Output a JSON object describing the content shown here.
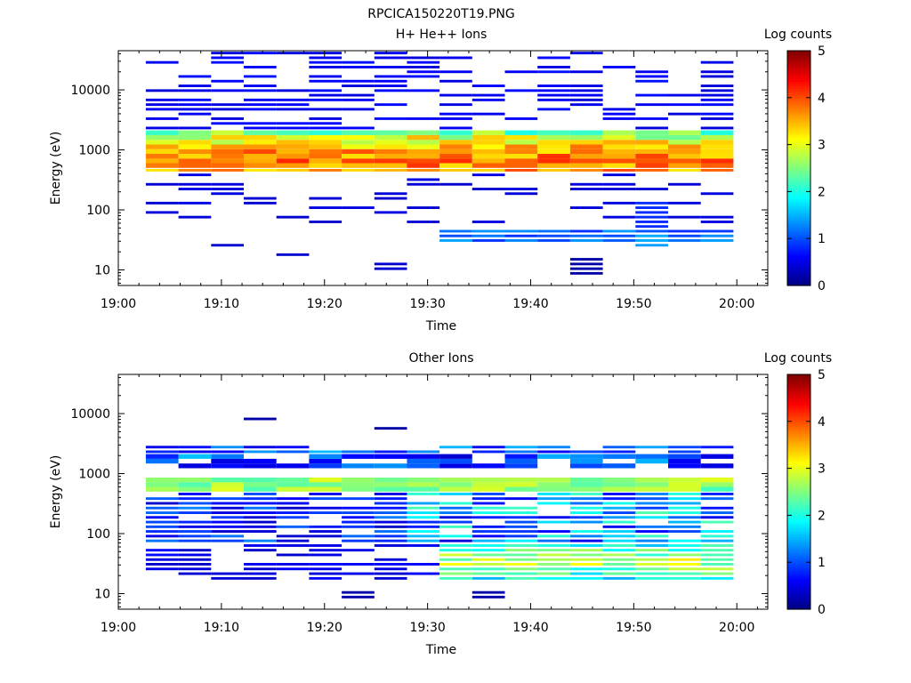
{
  "figure_title": "RPCICA150220T19.PNG",
  "chart_data": [
    {
      "type": "heatmap",
      "title": "H+ He++ Ions",
      "xlabel": "Time",
      "ylabel": "Energy (eV)",
      "y_scale": "log",
      "ylim": [
        5.5,
        45000
      ],
      "xlim_minutes": [
        0,
        63
      ],
      "x_ticks": [
        "19:00",
        "19:10",
        "19:20",
        "19:30",
        "19:40",
        "19:50",
        "20:00"
      ],
      "y_ticks": [
        "10",
        "100",
        "1000",
        "10000"
      ],
      "colorbar": {
        "label": "Log counts",
        "range": [
          0,
          5
        ],
        "ticks": [
          "0",
          "1",
          "2",
          "3",
          "4",
          "5"
        ]
      },
      "time_bins_start": [
        "19:02:40",
        "19:05:50",
        "19:09:00",
        "19:12:10",
        "19:15:20",
        "19:18:30",
        "19:21:40",
        "19:24:50",
        "19:28:00",
        "19:31:10",
        "19:34:20",
        "19:37:30",
        "19:40:40",
        "19:43:50",
        "19:47:00",
        "19:50:10",
        "19:53:20",
        "19:56:30"
      ],
      "description_of_values": "log10 counts per energy-time cell",
      "core_band": {
        "energy_range_eV": [
          400,
          2200
        ],
        "peak_log_counts": 4.2,
        "peak_energy_eV": 650
      },
      "secondary_band": {
        "energy_range_eV": [
          1300,
          1700
        ],
        "peak_log_counts": 3.5
      },
      "low_energy_patches": [
        {
          "time": "19:45:00",
          "energy_range_eV": [
            7,
            16
          ],
          "log_counts": 0.2
        },
        {
          "time": "19:26:00",
          "energy_range_eV": [
            10,
            15
          ],
          "log_counts": 0.4
        },
        {
          "time": "19:16:00",
          "energy_range_eV": [
            17,
            21
          ],
          "log_counts": 0.4
        },
        {
          "time": "19:10:00",
          "energy_range_eV": [
            22,
            27
          ],
          "log_counts": 0.4
        },
        {
          "time": "19:51:30",
          "energy_range_eV": [
            25,
            150
          ],
          "log_counts": 1.4
        }
      ]
    },
    {
      "type": "heatmap",
      "title": "Other Ions",
      "xlabel": "Time",
      "ylabel": "Energy (eV)",
      "y_scale": "log",
      "ylim": [
        5.5,
        45000
      ],
      "xlim_minutes": [
        0,
        63
      ],
      "x_ticks": [
        "19:00",
        "19:10",
        "19:20",
        "19:30",
        "19:40",
        "19:50",
        "20:00"
      ],
      "y_ticks": [
        "10",
        "100",
        "1000",
        "10000"
      ],
      "colorbar": {
        "label": "Log counts",
        "range": [
          0,
          5
        ],
        "ticks": [
          "0",
          "1",
          "2",
          "3",
          "4",
          "5"
        ]
      },
      "time_bins_start": [
        "19:02:40",
        "19:05:50",
        "19:09:00",
        "19:12:10",
        "19:15:20",
        "19:18:30",
        "19:21:40",
        "19:24:50",
        "19:28:00",
        "19:31:10",
        "19:34:20",
        "19:37:30",
        "19:40:40",
        "19:43:50",
        "19:47:00",
        "19:50:10",
        "19:53:20",
        "19:56:30"
      ],
      "description_of_values": "log10 counts per energy-time cell",
      "core_band": {
        "energy_range_eV": [
          500,
          800
        ],
        "peak_log_counts": 3.0,
        "peak_energy_eV": 620
      },
      "upper_band": {
        "energy_range_eV": [
          1200,
          3300
        ],
        "peak_log_counts": 2.0
      },
      "low_energy_band": {
        "energy_range_eV": [
          17,
          70
        ],
        "peak_log_counts": 3.3,
        "peak_time": "19:52:00",
        "peak_energy_eV": 35
      },
      "isolated_cells": [
        {
          "time": "19:13:30",
          "energy_eV": 8200,
          "log_counts": 0.2
        },
        {
          "time": "19:26:30",
          "energy_eV": 6000,
          "log_counts": 0.2
        },
        {
          "time": "19:24:00",
          "energy_range_eV": [
            6,
            11
          ],
          "log_counts": 0.2
        },
        {
          "time": "19:35:30",
          "energy_range_eV": [
            6,
            11
          ],
          "log_counts": 0.2
        }
      ]
    }
  ]
}
